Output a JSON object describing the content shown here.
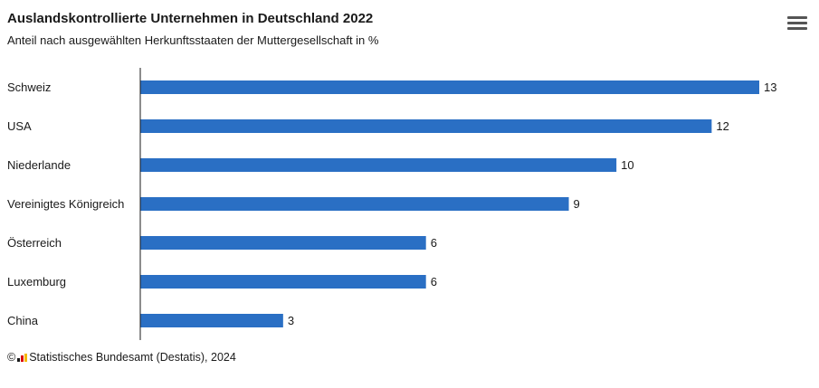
{
  "header": {
    "title": "Auslandskontrollierte Unternehmen in Deutschland 2022",
    "subtitle": "Anteil nach ausgewählten Herkunftsstaaten der Muttergesellschaft in %"
  },
  "menu": {
    "icon": "hamburger-menu-icon"
  },
  "footer": {
    "copyright": "©",
    "source": "Statistisches Bundesamt (Destatis), 2024"
  },
  "colors": {
    "bar": "#2a6fc4",
    "axis": "#1a1a1a"
  },
  "chart_data": {
    "type": "bar",
    "orientation": "horizontal",
    "title": "Auslandskontrollierte Unternehmen in Deutschland 2022",
    "subtitle": "Anteil nach ausgewählten Herkunftsstaaten der Muttergesellschaft in %",
    "categories": [
      "Schweiz",
      "USA",
      "Niederlande",
      "Vereinigtes Königreich",
      "Österreich",
      "Luxemburg",
      "China"
    ],
    "values": [
      13,
      12,
      10,
      9,
      6,
      6,
      3
    ],
    "xlim": [
      0,
      13
    ],
    "grid": false,
    "legend": "none"
  }
}
